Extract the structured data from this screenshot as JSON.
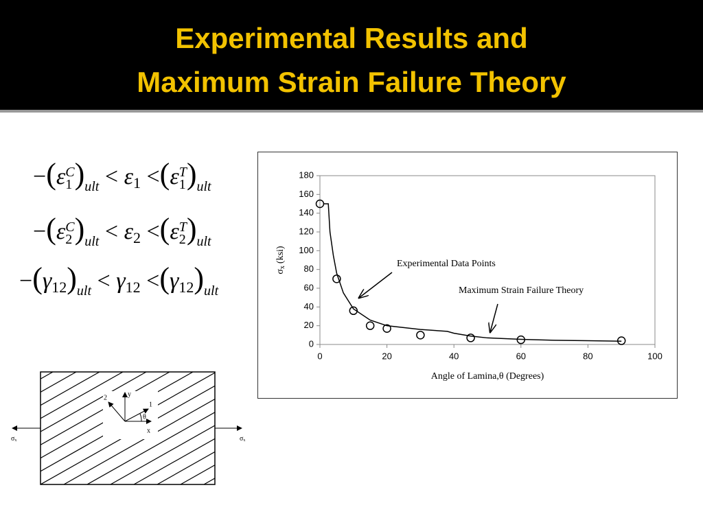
{
  "header": {
    "title_lines": [
      "Experimental Results and",
      "Maximum Strain Failure Theory"
    ]
  },
  "equations": [
    {
      "minus": "−",
      "open": "(",
      "close": ")",
      "symbol": "ε",
      "index": "1",
      "comp": "C",
      "tens": "T",
      "ult": "ult",
      "lt": "<"
    },
    {
      "minus": "−",
      "open": "(",
      "close": ")",
      "symbol": "ε",
      "index": "2",
      "comp": "C",
      "tens": "T",
      "ult": "ult",
      "lt": "<"
    },
    {
      "minus": "−",
      "open": "(",
      "close": ")",
      "symbol": "γ",
      "index": "12",
      "ult": "ult",
      "lt": "<"
    }
  ],
  "diagram": {
    "axis_2": "2",
    "axis_y": "y",
    "axis_1": "1",
    "angle": "θ",
    "axis_x": "x",
    "stress": {
      "symbol": "σ",
      "subscript": "x"
    }
  },
  "chart_data": {
    "type": "scatter",
    "x_label": "Angle of Lamina,θ (Degrees)",
    "y_label": {
      "symbol": "σ",
      "subscript": "x",
      "unit": "(ksi)"
    },
    "series": [
      {
        "name": "Experimental Data Points",
        "type": "scatter",
        "color": "#000000",
        "x": [
          0,
          5,
          10,
          15,
          20,
          30,
          45,
          60,
          90
        ],
        "values": [
          150,
          70,
          36,
          20,
          17,
          10,
          7,
          5,
          4
        ]
      },
      {
        "name": "Maximum Strain Failure Theory",
        "type": "line",
        "color": "#000000",
        "x": [
          1,
          2.5,
          3,
          4,
          5,
          7,
          10,
          15,
          20,
          30,
          38,
          40,
          45,
          50,
          60,
          70,
          80,
          90
        ],
        "values": [
          150,
          150,
          120,
          95,
          76,
          55,
          38,
          26,
          20,
          16,
          14,
          12,
          9,
          7,
          5.5,
          4.5,
          4,
          3.5
        ]
      }
    ],
    "xlim": [
      0,
      100
    ],
    "xticks": [
      0,
      20,
      40,
      60,
      80,
      100
    ],
    "ylim": [
      0,
      180
    ],
    "yticks": [
      0,
      20,
      40,
      60,
      80,
      100,
      120,
      140,
      160,
      180
    ]
  }
}
